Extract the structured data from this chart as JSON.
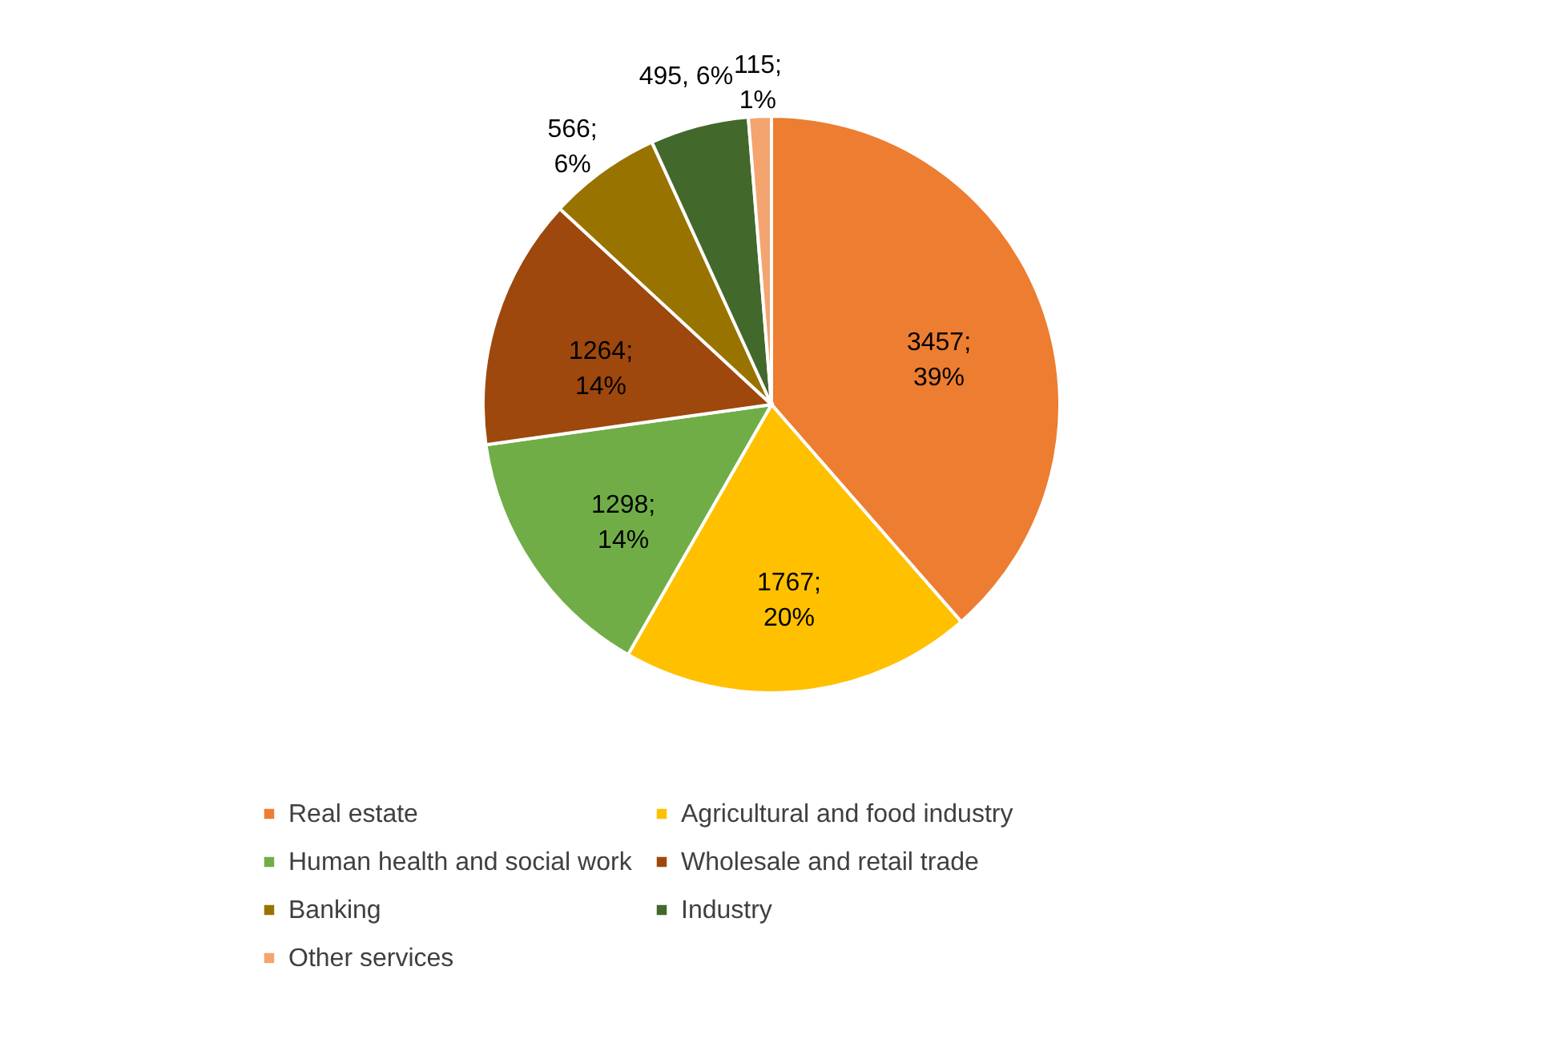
{
  "chart_data": {
    "type": "pie",
    "categories": [
      "Real estate",
      "Agricultural and food industry",
      "Human health and social work",
      "Wholesale and retail trade",
      "Banking",
      "Industry",
      "Other services"
    ],
    "values": [
      3457,
      1767,
      1298,
      1264,
      566,
      495,
      115
    ],
    "colors": [
      "#ed7d31",
      "#ffc000",
      "#70ad47",
      "#9e480e",
      "#997300",
      "#43682b",
      "#f4a46e"
    ],
    "value_labels": [
      "3457;\n39%",
      "1767;\n20%",
      "1298;\n14%",
      "1264;\n14%",
      "566;\n6%",
      "495, 6%",
      "115;\n1%"
    ],
    "legend": "bottom"
  }
}
